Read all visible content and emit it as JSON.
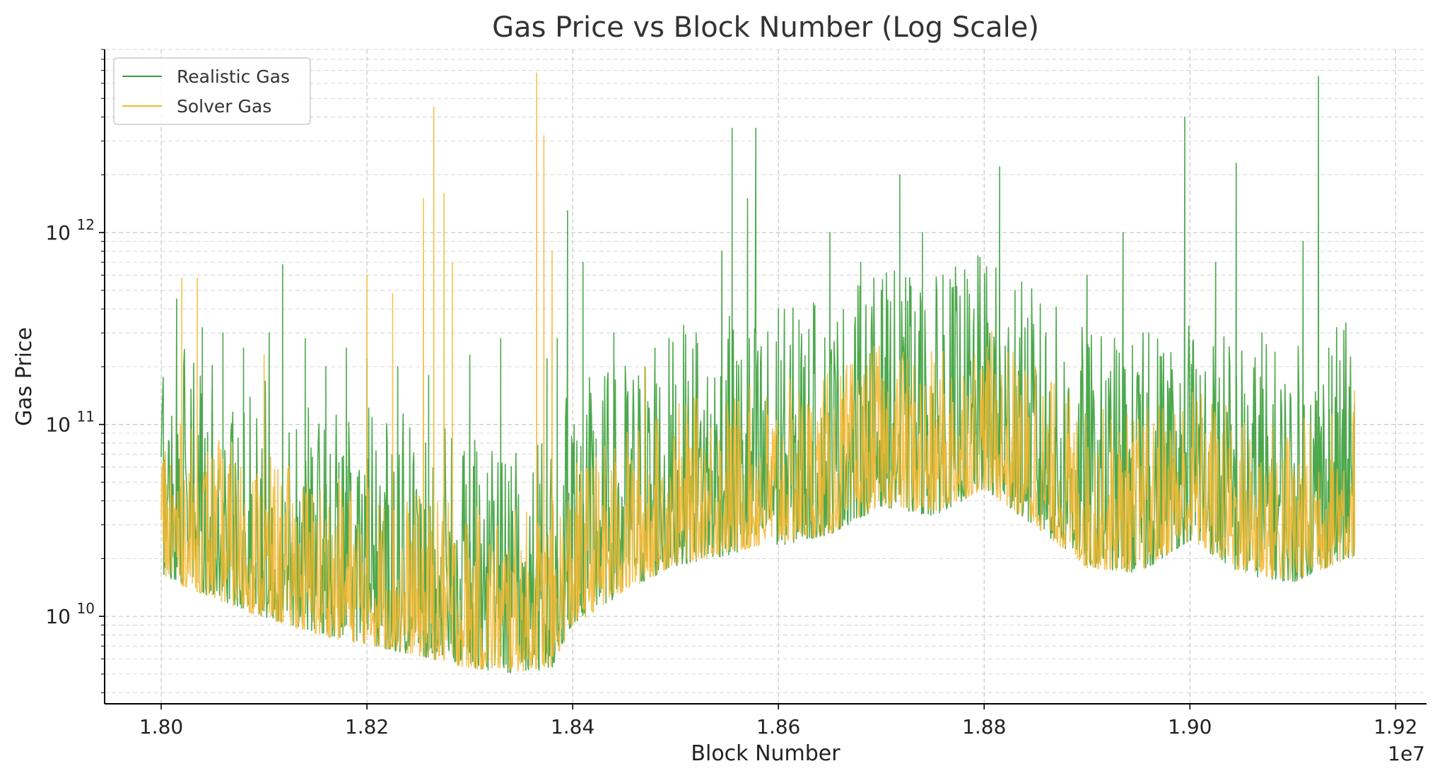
{
  "chart_data": {
    "type": "line",
    "title": "Gas Price vs Block Number (Log Scale)",
    "xlabel": "Block Number",
    "ylabel": "Gas Price",
    "x_offset_label": "1e7",
    "x_scale": "linear",
    "y_scale": "log",
    "xlim": [
      17945000,
      19230000
    ],
    "ylim": [
      3500000000,
      9000000000000
    ],
    "grid": true,
    "grid_style": "dashed",
    "legend_position": "top-left",
    "x_ticks": [
      {
        "value": 18000000,
        "label": "1.80"
      },
      {
        "value": 18200000,
        "label": "1.82"
      },
      {
        "value": 18400000,
        "label": "1.84"
      },
      {
        "value": 18600000,
        "label": "1.86"
      },
      {
        "value": 18800000,
        "label": "1.88"
      },
      {
        "value": 19000000,
        "label": "1.90"
      },
      {
        "value": 19200000,
        "label": "1.92"
      }
    ],
    "y_ticks": [
      {
        "value": 10000000000,
        "base": "10",
        "exp": "10"
      },
      {
        "value": 100000000000,
        "base": "10",
        "exp": "11"
      },
      {
        "value": 1000000000000,
        "base": "10",
        "exp": "12"
      }
    ],
    "x_range": [
      18000000,
      19160000
    ],
    "series": [
      {
        "name": "Realistic Gas",
        "color": "#3a9e3a",
        "baseline": [
          [
            18000000,
            20000000000.0
          ],
          [
            18050000,
            15000000000.0
          ],
          [
            18100000,
            12000000000.0
          ],
          [
            18150000,
            10000000000.0
          ],
          [
            18200000,
            8500000000.0
          ],
          [
            18250000,
            7500000000.0
          ],
          [
            18300000,
            6500000000.0
          ],
          [
            18350000,
            6000000000.0
          ],
          [
            18380000,
            6500000000.0
          ],
          [
            18400000,
            11000000000.0
          ],
          [
            18450000,
            16000000000.0
          ],
          [
            18500000,
            22000000000.0
          ],
          [
            18550000,
            25000000000.0
          ],
          [
            18600000,
            28000000000.0
          ],
          [
            18650000,
            32000000000.0
          ],
          [
            18700000,
            45000000000.0
          ],
          [
            18750000,
            40000000000.0
          ],
          [
            18800000,
            55000000000.0
          ],
          [
            18850000,
            35000000000.0
          ],
          [
            18900000,
            22000000000.0
          ],
          [
            18950000,
            20000000000.0
          ],
          [
            19000000,
            30000000000.0
          ],
          [
            19050000,
            20000000000.0
          ],
          [
            19100000,
            18000000000.0
          ],
          [
            19160000,
            25000000000.0
          ]
        ],
        "spikes": [
          [
            18003000,
            65000000000.0
          ],
          [
            18015000,
            450000000000.0
          ],
          [
            18040000,
            320000000000.0
          ],
          [
            18060000,
            300000000000.0
          ],
          [
            18080000,
            250000000000.0
          ],
          [
            18105000,
            300000000000.0
          ],
          [
            18118000,
            680000000000.0
          ],
          [
            18140000,
            280000000000.0
          ],
          [
            18160000,
            200000000000.0
          ],
          [
            18180000,
            250000000000.0
          ],
          [
            18200000,
            220000000000.0
          ],
          [
            18230000,
            200000000000.0
          ],
          [
            18260000,
            180000000000.0
          ],
          [
            18300000,
            230000000000.0
          ],
          [
            18330000,
            280000000000.0
          ],
          [
            18375000,
            220000000000.0
          ],
          [
            18385000,
            280000000000.0
          ],
          [
            18395000,
            1300000000000.0
          ],
          [
            18410000,
            700000000000.0
          ],
          [
            18440000,
            300000000000.0
          ],
          [
            18480000,
            250000000000.0
          ],
          [
            18520000,
            300000000000.0
          ],
          [
            18545000,
            800000000000.0
          ],
          [
            18555000,
            3500000000000.0
          ],
          [
            18570000,
            1500000000000.0
          ],
          [
            18578000,
            3500000000000.0
          ],
          [
            18600000,
            400000000000.0
          ],
          [
            18620000,
            350000000000.0
          ],
          [
            18650000,
            1000000000000.0
          ],
          [
            18680000,
            700000000000.0
          ],
          [
            18700000,
            500000000000.0
          ],
          [
            18718000,
            2000000000000.0
          ],
          [
            18740000,
            1000000000000.0
          ],
          [
            18760000,
            600000000000.0
          ],
          [
            18790000,
            400000000000.0
          ],
          [
            18815000,
            2200000000000.0
          ],
          [
            18830000,
            500000000000.0
          ],
          [
            18860000,
            300000000000.0
          ],
          [
            18900000,
            600000000000.0
          ],
          [
            18935000,
            1000000000000.0
          ],
          [
            18960000,
            300000000000.0
          ],
          [
            18995000,
            4000000000000.0
          ],
          [
            19010000,
            180000000000.0
          ],
          [
            19025000,
            700000000000.0
          ],
          [
            19045000,
            2300000000000.0
          ],
          [
            19070000,
            300000000000.0
          ],
          [
            19110000,
            900000000000.0
          ],
          [
            19125000,
            6500000000000.0
          ],
          [
            19135000,
            250000000000.0
          ],
          [
            19155000,
            150000000000.0
          ]
        ]
      },
      {
        "name": "Solver Gas",
        "color": "#f5b731",
        "baseline": [
          [
            18000000,
            18000000000.0
          ],
          [
            18050000,
            14000000000.0
          ],
          [
            18100000,
            11000000000.0
          ],
          [
            18150000,
            9000000000.0
          ],
          [
            18200000,
            8000000000.0
          ],
          [
            18250000,
            7000000000.0
          ],
          [
            18300000,
            6000000000.0
          ],
          [
            18350000,
            5800000000.0
          ],
          [
            18380000,
            6200000000.0
          ],
          [
            18400000,
            10000000000.0
          ],
          [
            18450000,
            15000000000.0
          ],
          [
            18500000,
            21000000000.0
          ],
          [
            18550000,
            24000000000.0
          ],
          [
            18600000,
            27000000000.0
          ],
          [
            18650000,
            30000000000.0
          ],
          [
            18700000,
            43000000000.0
          ],
          [
            18750000,
            38000000000.0
          ],
          [
            18800000,
            52000000000.0
          ],
          [
            18850000,
            33000000000.0
          ],
          [
            18900000,
            20000000000.0
          ],
          [
            18950000,
            19000000000.0
          ],
          [
            19000000,
            28000000000.0
          ],
          [
            19050000,
            19000000000.0
          ],
          [
            19100000,
            17000000000.0
          ],
          [
            19160000,
            23000000000.0
          ]
        ],
        "spikes": [
          [
            18020000,
            580000000000.0
          ],
          [
            18035000,
            580000000000.0
          ],
          [
            18100000,
            230000000000.0
          ],
          [
            18200000,
            600000000000.0
          ],
          [
            18225000,
            480000000000.0
          ],
          [
            18255000,
            1500000000000.0
          ],
          [
            18265000,
            4500000000000.0
          ],
          [
            18275000,
            1600000000000.0
          ],
          [
            18283000,
            700000000000.0
          ],
          [
            18365000,
            6800000000000.0
          ],
          [
            18372000,
            3200000000000.0
          ],
          [
            18380000,
            800000000000.0
          ],
          [
            18470000,
            200000000000.0
          ],
          [
            18850000,
            200000000000.0
          ],
          [
            19160000,
            150000000000.0
          ]
        ]
      }
    ]
  }
}
